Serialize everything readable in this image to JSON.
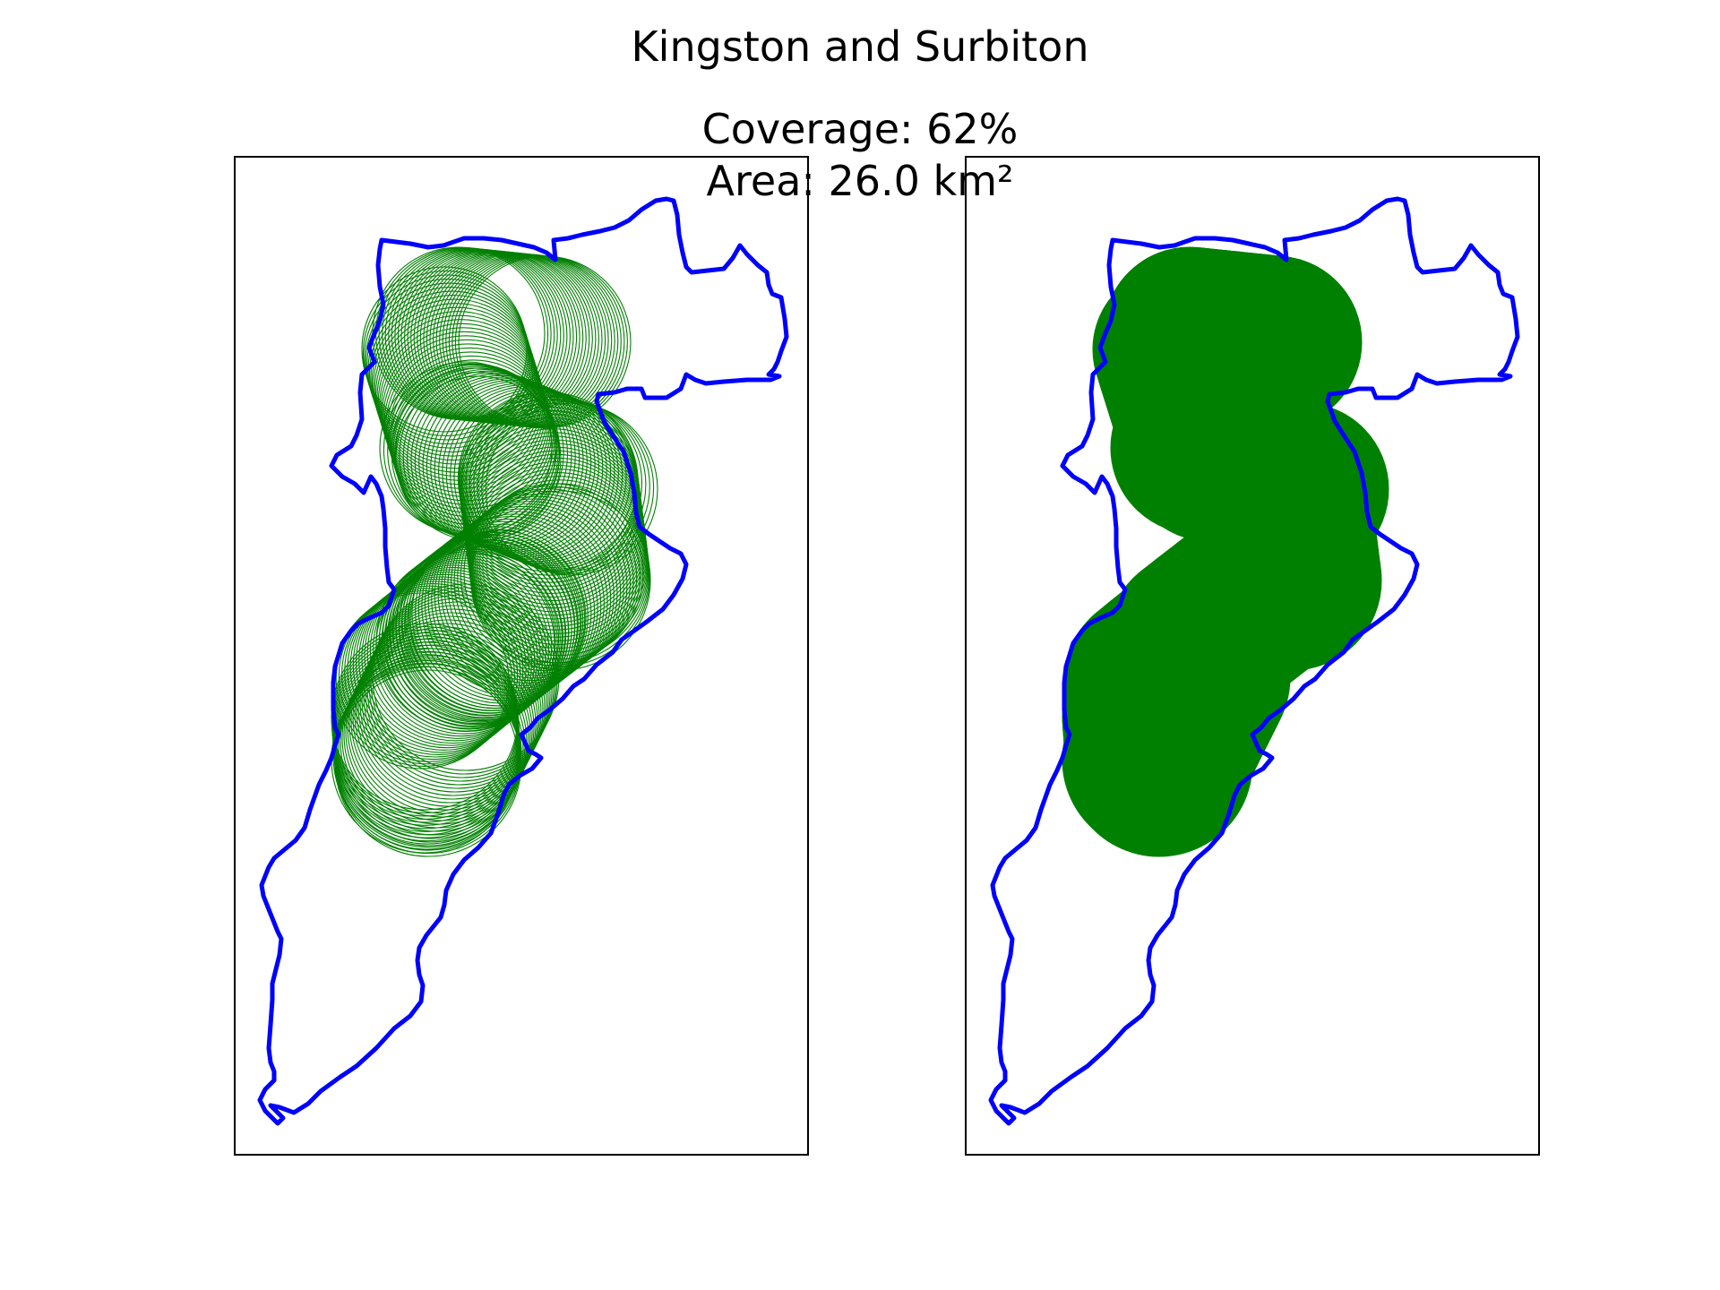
{
  "title": "Kingston and Surbiton",
  "stats": {
    "coverage_text": "Coverage: 62%",
    "area_text": "Area: 26.0 km²"
  },
  "panels": [
    {
      "id": "outline",
      "style": "circle-outlines"
    },
    {
      "id": "filled",
      "style": "filled-union"
    }
  ],
  "colors": {
    "boundary": "#0000ff",
    "coverage": "#008000",
    "frame": "#000000",
    "background": "#ffffff"
  }
}
